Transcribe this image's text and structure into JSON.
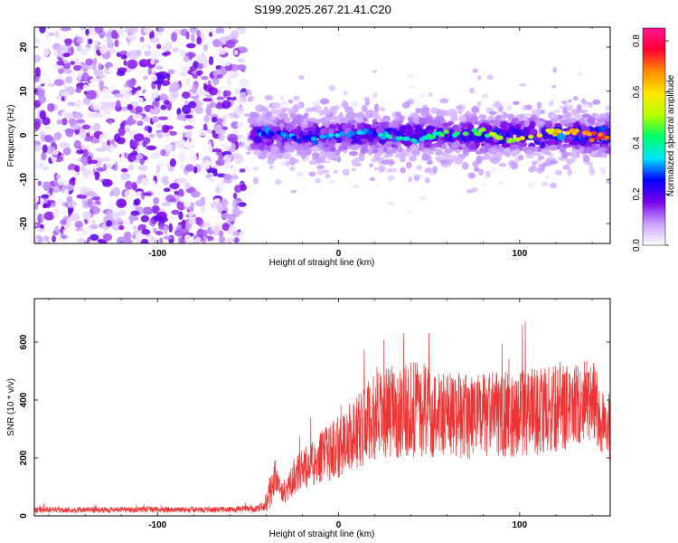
{
  "page": {
    "title": "S199.2025.267.21.41.C20"
  },
  "chart_data": [
    {
      "type": "heatmap",
      "title": "S199.2025.267.21.41.C20",
      "xlabel": "Height of straight line (km)",
      "ylabel": "Frequency (Hz)",
      "xlim": [
        -168,
        150
      ],
      "ylim": [
        -24.5,
        24.5
      ],
      "x_ticks": [
        -100,
        0,
        100
      ],
      "x_tick_labels": [
        "-100",
        "0",
        "100"
      ],
      "y_ticks": [
        -20,
        -10,
        0,
        10,
        20
      ],
      "y_tick_labels": [
        "-20",
        "-10",
        "0",
        "10",
        "20"
      ],
      "noise_region_x": [
        -168,
        -52
      ],
      "signal_band_center_hz": 0,
      "signal_band_halfwidth_hz": 3,
      "colorbar": {
        "label": "Normalized spectral amplitude",
        "range": [
          0.0,
          0.85
        ],
        "ticks": [
          0.0,
          0.2,
          0.4,
          0.6,
          0.8
        ],
        "tick_labels": [
          "0.0",
          "0.2",
          "0.4",
          "0.6",
          "0.8"
        ],
        "colors": [
          "#ffffff",
          "#c8a0ff",
          "#7a00e6",
          "#0000ff",
          "#00e5ff",
          "#00ff66",
          "#b8ff00",
          "#ffe600",
          "#ff8c00",
          "#ff0033",
          "#ff1493"
        ]
      }
    },
    {
      "type": "line",
      "title": "",
      "xlabel": "Height of straight line (km)",
      "ylabel": "SNR (10 * v/v)",
      "xlim": [
        -168,
        150
      ],
      "ylim": [
        0,
        750
      ],
      "x_ticks": [
        -100,
        0,
        100
      ],
      "x_tick_labels": [
        "-100",
        "0",
        "100"
      ],
      "y_ticks": [
        0,
        200,
        400,
        600
      ],
      "y_tick_labels": [
        "0",
        "200",
        "400",
        "600"
      ],
      "color": "#ee3333",
      "series": [
        {
          "name": "SNR",
          "envelope_x": [
            -168,
            -60,
            -45,
            -40,
            -38,
            -35,
            -33,
            -30,
            -25,
            -20,
            -10,
            0,
            10,
            20,
            30,
            40,
            50,
            60,
            70,
            80,
            90,
            100,
            110,
            120,
            130,
            140,
            145,
            150
          ],
          "envelope_mean": [
            20,
            22,
            25,
            35,
            80,
            140,
            110,
            70,
            130,
            160,
            200,
            240,
            290,
            340,
            360,
            370,
            360,
            350,
            340,
            345,
            350,
            355,
            360,
            370,
            380,
            400,
            330,
            300
          ],
          "envelope_spread": [
            10,
            10,
            12,
            20,
            60,
            60,
            40,
            30,
            60,
            70,
            90,
            110,
            130,
            150,
            160,
            170,
            160,
            150,
            150,
            150,
            150,
            150,
            150,
            150,
            150,
            140,
            130,
            120
          ]
        }
      ]
    }
  ]
}
